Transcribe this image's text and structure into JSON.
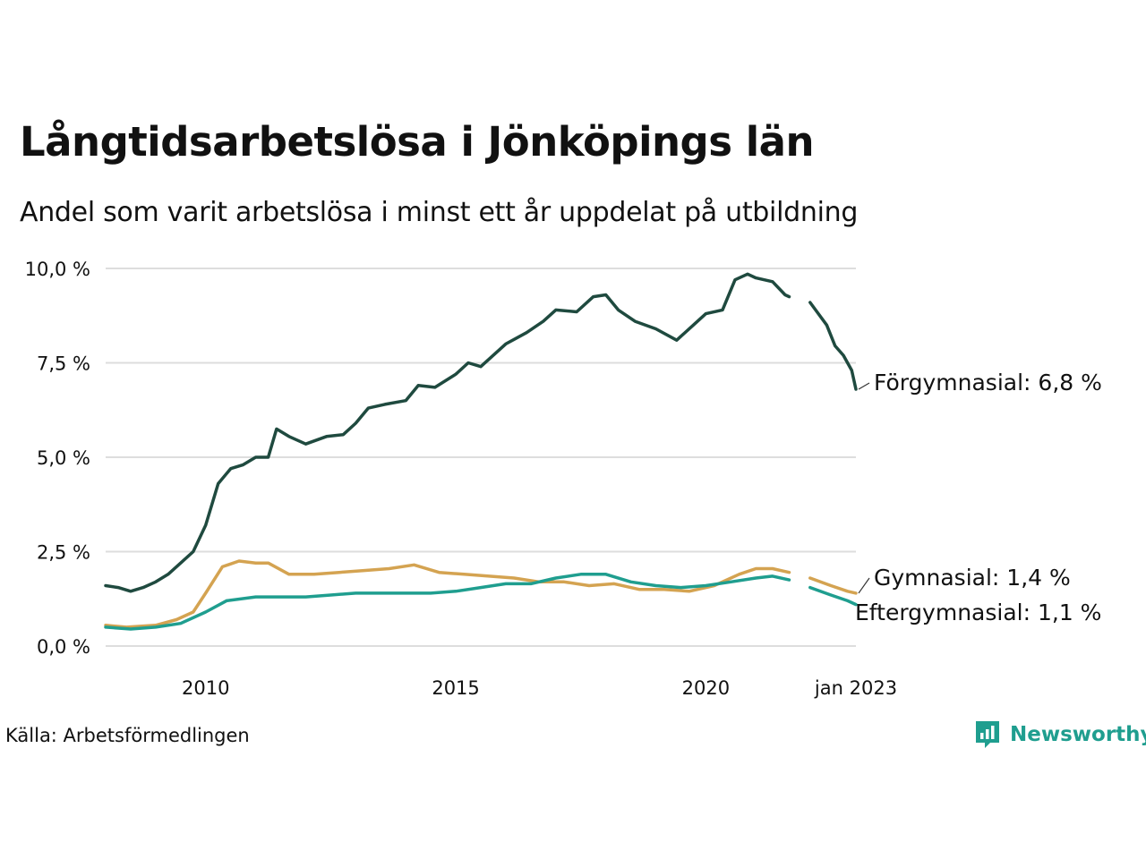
{
  "header": {
    "title": "Långtidsarbetslösa i Jönköpings län",
    "subtitle": "Andel som varit arbetslösa i minst ett år uppdelat på utbildning"
  },
  "footer": {
    "source": "Källa: Arbetsförmedlingen",
    "brand": "Newsworthy",
    "brand_icon": "newsworthy-logo-icon",
    "brand_color": "#1f9e8f"
  },
  "chart_data": {
    "type": "line",
    "x_type": "date",
    "xlim": [
      "2008-01",
      "2023-01"
    ],
    "ylim": [
      0,
      10
    ],
    "y_ticks": [
      {
        "value": 0,
        "label": "0,0 %"
      },
      {
        "value": 2.5,
        "label": "2,5 %"
      },
      {
        "value": 5,
        "label": "5,0 %"
      },
      {
        "value": 7.5,
        "label": "7,5 %"
      },
      {
        "value": 10,
        "label": "10,0 %"
      }
    ],
    "x_ticks": [
      {
        "value": "2010-01",
        "label": "2010"
      },
      {
        "value": "2015-01",
        "label": "2015"
      },
      {
        "value": "2020-01",
        "label": "2020"
      },
      {
        "value": "2023-01",
        "label": "jan 2023"
      }
    ],
    "grid": true,
    "legend": "end-labels",
    "series": [
      {
        "name": "Förgymnasial",
        "end_label": "Förgymnasial: 6,8 %",
        "color": "#1f4a3f",
        "points": [
          [
            "2008-01",
            1.6
          ],
          [
            "2008-04",
            1.55
          ],
          [
            "2008-07",
            1.45
          ],
          [
            "2008-10",
            1.55
          ],
          [
            "2009-01",
            1.7
          ],
          [
            "2009-04",
            1.9
          ],
          [
            "2009-07",
            2.2
          ],
          [
            "2009-10",
            2.5
          ],
          [
            "2010-01",
            3.2
          ],
          [
            "2010-04",
            4.3
          ],
          [
            "2010-07",
            4.7
          ],
          [
            "2010-10",
            4.8
          ],
          [
            "2011-01",
            5.0
          ],
          [
            "2011-04",
            5.0
          ],
          [
            "2011-06",
            5.75
          ],
          [
            "2011-09",
            5.55
          ],
          [
            "2012-01",
            5.35
          ],
          [
            "2012-06",
            5.55
          ],
          [
            "2012-10",
            5.6
          ],
          [
            "2013-01",
            5.9
          ],
          [
            "2013-04",
            6.3
          ],
          [
            "2013-08",
            6.4
          ],
          [
            "2014-01",
            6.5
          ],
          [
            "2014-04",
            6.9
          ],
          [
            "2014-08",
            6.85
          ],
          [
            "2015-01",
            7.2
          ],
          [
            "2015-04",
            7.5
          ],
          [
            "2015-07",
            7.4
          ],
          [
            "2016-01",
            8.0
          ],
          [
            "2016-06",
            8.3
          ],
          [
            "2016-10",
            8.6
          ],
          [
            "2017-01",
            8.9
          ],
          [
            "2017-06",
            8.85
          ],
          [
            "2017-10",
            9.25
          ],
          [
            "2018-01",
            9.3
          ],
          [
            "2018-04",
            8.9
          ],
          [
            "2018-08",
            8.6
          ],
          [
            "2019-01",
            8.4
          ],
          [
            "2019-06",
            8.1
          ],
          [
            "2019-10",
            8.5
          ],
          [
            "2020-01",
            8.8
          ],
          [
            "2020-05",
            8.9
          ],
          [
            "2020-08",
            9.7
          ],
          [
            "2020-11",
            9.85
          ],
          [
            "2021-01",
            9.75
          ],
          [
            "2021-05",
            9.65
          ],
          [
            "2021-08",
            9.3
          ],
          [
            "2021-09",
            9.25
          ],
          null,
          [
            "2022-02",
            9.1
          ],
          [
            "2022-06",
            8.5
          ],
          [
            "2022-08",
            7.95
          ],
          [
            "2022-10",
            7.7
          ],
          [
            "2022-12",
            7.3
          ],
          [
            "2023-01",
            6.8
          ]
        ]
      },
      {
        "name": "Gymnasial",
        "end_label": "Gymnasial: 1,4 %",
        "color": "#d4a351",
        "points": [
          [
            "2008-01",
            0.55
          ],
          [
            "2008-06",
            0.5
          ],
          [
            "2009-01",
            0.55
          ],
          [
            "2009-06",
            0.7
          ],
          [
            "2009-10",
            0.9
          ],
          [
            "2010-01",
            1.4
          ],
          [
            "2010-05",
            2.1
          ],
          [
            "2010-09",
            2.25
          ],
          [
            "2011-01",
            2.2
          ],
          [
            "2011-04",
            2.2
          ],
          [
            "2011-09",
            1.9
          ],
          [
            "2012-03",
            1.9
          ],
          [
            "2012-09",
            1.95
          ],
          [
            "2013-03",
            2.0
          ],
          [
            "2013-09",
            2.05
          ],
          [
            "2014-03",
            2.15
          ],
          [
            "2014-09",
            1.95
          ],
          [
            "2015-03",
            1.9
          ],
          [
            "2015-09",
            1.85
          ],
          [
            "2016-03",
            1.8
          ],
          [
            "2016-09",
            1.7
          ],
          [
            "2017-03",
            1.7
          ],
          [
            "2017-09",
            1.6
          ],
          [
            "2018-03",
            1.65
          ],
          [
            "2018-09",
            1.5
          ],
          [
            "2019-03",
            1.5
          ],
          [
            "2019-09",
            1.45
          ],
          [
            "2020-03",
            1.6
          ],
          [
            "2020-09",
            1.9
          ],
          [
            "2021-01",
            2.05
          ],
          [
            "2021-05",
            2.05
          ],
          [
            "2021-09",
            1.95
          ],
          null,
          [
            "2022-02",
            1.8
          ],
          [
            "2022-07",
            1.6
          ],
          [
            "2022-11",
            1.45
          ],
          [
            "2023-01",
            1.4
          ]
        ]
      },
      {
        "name": "Eftergymnasial",
        "end_label": "Eftergymnasial: 1,1 %",
        "color": "#1f9e8f",
        "points": [
          [
            "2008-01",
            0.5
          ],
          [
            "2008-07",
            0.45
          ],
          [
            "2009-01",
            0.5
          ],
          [
            "2009-07",
            0.6
          ],
          [
            "2010-01",
            0.9
          ],
          [
            "2010-06",
            1.2
          ],
          [
            "2011-01",
            1.3
          ],
          [
            "2011-07",
            1.3
          ],
          [
            "2012-01",
            1.3
          ],
          [
            "2012-07",
            1.35
          ],
          [
            "2013-01",
            1.4
          ],
          [
            "2013-07",
            1.4
          ],
          [
            "2014-01",
            1.4
          ],
          [
            "2014-07",
            1.4
          ],
          [
            "2015-01",
            1.45
          ],
          [
            "2015-07",
            1.55
          ],
          [
            "2016-01",
            1.65
          ],
          [
            "2016-07",
            1.65
          ],
          [
            "2017-01",
            1.8
          ],
          [
            "2017-07",
            1.9
          ],
          [
            "2018-01",
            1.9
          ],
          [
            "2018-07",
            1.7
          ],
          [
            "2019-01",
            1.6
          ],
          [
            "2019-07",
            1.55
          ],
          [
            "2020-01",
            1.6
          ],
          [
            "2020-07",
            1.7
          ],
          [
            "2021-01",
            1.8
          ],
          [
            "2021-05",
            1.85
          ],
          [
            "2021-09",
            1.75
          ],
          null,
          [
            "2022-02",
            1.55
          ],
          [
            "2022-07",
            1.35
          ],
          [
            "2022-11",
            1.2
          ],
          [
            "2023-01",
            1.1
          ]
        ]
      }
    ]
  }
}
